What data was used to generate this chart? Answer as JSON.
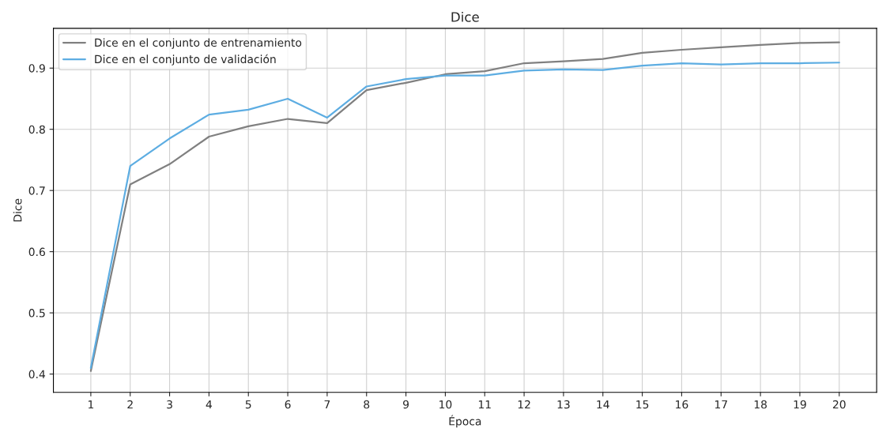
{
  "chart_data": {
    "type": "line",
    "title": "Dice",
    "xlabel": "Época",
    "ylabel": "Dice",
    "x": [
      1,
      2,
      3,
      4,
      5,
      6,
      7,
      8,
      9,
      10,
      11,
      12,
      13,
      14,
      15,
      16,
      17,
      18,
      19,
      20
    ],
    "series": [
      {
        "name": "Dice en el conjunto de entrenamiento",
        "color": "#808080",
        "values": [
          0.405,
          0.71,
          0.743,
          0.788,
          0.805,
          0.817,
          0.81,
          0.864,
          0.876,
          0.89,
          0.895,
          0.908,
          0.911,
          0.915,
          0.925,
          0.93,
          0.934,
          0.938,
          0.941,
          0.942
        ]
      },
      {
        "name": "Dice en el conjunto de validación",
        "color": "#5dade2",
        "values": [
          0.41,
          0.74,
          0.785,
          0.824,
          0.832,
          0.85,
          0.819,
          0.87,
          0.882,
          0.888,
          0.888,
          0.896,
          0.898,
          0.897,
          0.904,
          0.908,
          0.906,
          0.908,
          0.908,
          0.909
        ]
      }
    ],
    "xlim": [
      0.05,
      20.95
    ],
    "xticks": [
      1,
      2,
      3,
      4,
      5,
      6,
      7,
      8,
      9,
      10,
      11,
      12,
      13,
      14,
      15,
      16,
      17,
      18,
      19,
      20
    ],
    "ylim": [
      0.37,
      0.965
    ],
    "yticks": [
      0.4,
      0.5,
      0.6,
      0.7,
      0.8,
      0.9
    ],
    "grid": true,
    "legend": "top left",
    "marker": "none",
    "line_style": "solid"
  }
}
